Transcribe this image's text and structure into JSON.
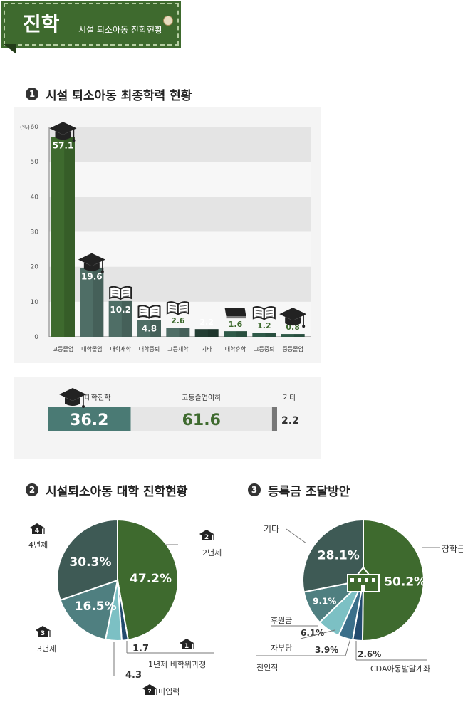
{
  "banner": {
    "title": "진학",
    "subtitle": "시설 퇴소아동 진학현황"
  },
  "colors": {
    "dark_green": "#3e6a2e",
    "teal_gray": "#4f6e66",
    "mid_teal": "#4a7a74",
    "light_teal": "#7cc0c4",
    "navy": "#234b6e",
    "light_gray": "#e6e6e6",
    "axis_gray": "#777777"
  },
  "sections": [
    {
      "number": "1",
      "title": "시설 퇴소아동 최종학력 현황"
    },
    {
      "number": "2",
      "title": "시설퇴소아동 대학 진학현황"
    },
    {
      "number": "3",
      "title": "등록금 조달방안"
    }
  ],
  "chart_data": [
    {
      "type": "bar",
      "title": "시설 퇴소아동 최종학력 현황",
      "ylabel": "(%)",
      "ylim": [
        0,
        60
      ],
      "yticks": [
        0,
        10,
        20,
        30,
        40,
        50,
        60
      ],
      "grid": true,
      "categories": [
        "고등졸업",
        "대학졸업",
        "대학재학",
        "대학중퇴",
        "고등재학",
        "기타",
        "대학휴학",
        "고등중퇴",
        "중등졸업"
      ],
      "values": [
        57.1,
        19.6,
        10.2,
        4.8,
        2.6,
        2.2,
        1.6,
        1.2,
        0.8
      ],
      "value_labels": [
        "57.1",
        "19.6",
        "10.2",
        "4.8",
        "2.6",
        "2.2",
        "1.6",
        "1.2",
        "0.8"
      ],
      "icons": [
        "graduation-cap-icon",
        "graduation-cap-icon",
        "open-book-icon",
        "broken-book-icon",
        "open-book-icon",
        "",
        "closed-book-icon",
        "open-book-icon",
        "graduation-cap-icon"
      ]
    },
    {
      "type": "bar",
      "orientation": "stacked-horizontal",
      "categories": [
        "대학진학",
        "고등졸업이하",
        "기타"
      ],
      "values": [
        36.2,
        61.6,
        2.2
      ],
      "value_labels": [
        "36.2",
        "61.6",
        "2.2"
      ]
    },
    {
      "type": "pie",
      "title": "시설퇴소아동 대학 진학현황",
      "categories": [
        "2년제",
        "1년제 비학위과정",
        "미입력",
        "3년제",
        "4년제"
      ],
      "values": [
        47.2,
        1.7,
        4.3,
        16.5,
        30.3
      ],
      "value_labels": [
        "47.2%",
        "1.7",
        "4.3",
        "16.5%",
        "30.3%"
      ],
      "badges": [
        "2",
        "1",
        "?",
        "3",
        "4"
      ]
    },
    {
      "type": "pie",
      "title": "등록금 조달방안",
      "categories": [
        "장학금",
        "CDA아동발달계좌",
        "친인척",
        "자부담",
        "후원금",
        "기타"
      ],
      "values": [
        50.2,
        2.6,
        3.9,
        6.1,
        9.1,
        28.1
      ],
      "value_labels": [
        "50.2%",
        "2.6%",
        "3.9%",
        "6.1%",
        "9.1%",
        "28.1%"
      ]
    }
  ]
}
